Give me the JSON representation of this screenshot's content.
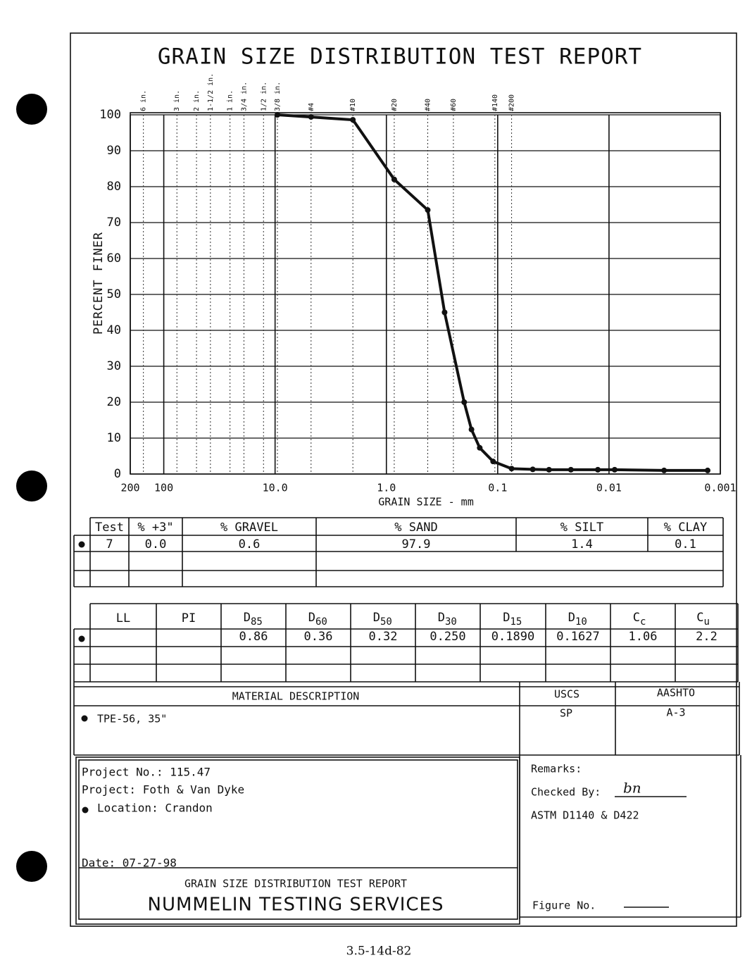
{
  "chart_data": {
    "type": "line",
    "title": "GRAIN SIZE DISTRIBUTION TEST REPORT",
    "x_label": "GRAIN SIZE - mm",
    "y_label": "PERCENT FINER",
    "x_log": true,
    "xlim": [
      200,
      0.001
    ],
    "xticks": [
      200,
      100,
      {
        "value": 10,
        "label": "10.0"
      },
      {
        "value": 1,
        "label": "1.0"
      },
      0.1,
      0.01,
      0.001
    ],
    "ylim": [
      0,
      100
    ],
    "yticks": [
      0,
      10,
      20,
      30,
      40,
      50,
      60,
      70,
      80,
      90,
      100
    ],
    "grid": true,
    "sieves": [
      {
        "value": 152.4,
        "label": "6 in."
      },
      {
        "value": 76.2,
        "label": "3 in."
      },
      {
        "value": 50.8,
        "label": "2 in."
      },
      {
        "value": 38.1,
        "label": "1-1/2 in."
      },
      {
        "value": 25.4,
        "label": "1 in."
      },
      {
        "value": 19.05,
        "label": "3/4 in."
      },
      {
        "value": 12.7,
        "label": "1/2 in."
      },
      {
        "value": 9.525,
        "label": "3/8 in."
      },
      {
        "value": 4.75,
        "label": "#4"
      },
      {
        "value": 2.0,
        "label": "#10"
      },
      {
        "value": 0.85,
        "label": "#20"
      },
      {
        "value": 0.425,
        "label": "#40"
      },
      {
        "value": 0.25,
        "label": "#60"
      },
      {
        "value": 0.106,
        "label": "#140"
      },
      {
        "value": 0.075,
        "label": "#200"
      }
    ],
    "x": [
      9.525,
      4.75,
      2.0,
      0.85,
      0.425,
      0.3,
      0.2,
      0.172,
      0.145,
      0.11,
      0.075,
      0.0484,
      0.0346,
      0.022,
      0.0126,
      0.0089,
      0.0032,
      0.0013
    ],
    "values": [
      100,
      99.4,
      98.6,
      82,
      73.5,
      45,
      20,
      12.4,
      7.3,
      3.5,
      1.5,
      1.3,
      1.2,
      1.2,
      1.2,
      1.2,
      1.0,
      1.0
    ],
    "color": "#111111"
  },
  "grain_table": {
    "headers": [
      "Test",
      "% +3\"",
      "% GRAVEL",
      "% SAND",
      "% SILT",
      "% CLAY"
    ],
    "rows": [
      [
        "7",
        "0.0",
        "0.6",
        "97.9",
        "1.4",
        "0.1"
      ]
    ]
  },
  "coefficient_table": {
    "headers": [
      "LL",
      "PI",
      {
        "text": "D",
        "sub": "85"
      },
      {
        "text": "D",
        "sub": "60"
      },
      {
        "text": "D",
        "sub": "50"
      },
      {
        "text": "D",
        "sub": "30"
      },
      {
        "text": "D",
        "sub": "15"
      },
      {
        "text": "D",
        "sub": "10"
      },
      {
        "text": "C",
        "sub": "c"
      },
      {
        "text": "C",
        "sub": "u"
      }
    ],
    "rows": [
      [
        null,
        null,
        "0.86",
        "0.36",
        "0.32",
        "0.250",
        "0.1890",
        "0.1627",
        "1.06",
        "2.2"
      ]
    ]
  },
  "material": {
    "heading": "MATERIAL DESCRIPTION",
    "uscs_heading": "USCS",
    "aashto_heading": "AASHTO",
    "description": "TPE-56, 35\"",
    "uscs": "SP",
    "aashto": "A-3"
  },
  "project": {
    "number": "Project No.: 115.47",
    "name": "Project: Foth & Van Dyke",
    "location": "Location: Crandon",
    "date": "Date: 07-27-98"
  },
  "remarks": {
    "heading": "Remarks:",
    "checked_by": "Checked By:",
    "signature": "bn",
    "standard": "ASTM D1140 & D422"
  },
  "footer": {
    "report_title": "GRAIN SIZE DISTRIBUTION TEST REPORT",
    "company": "NUMMELIN TESTING SERVICES",
    "figure": "Figure No."
  },
  "page_number": "3.5-14d-82"
}
